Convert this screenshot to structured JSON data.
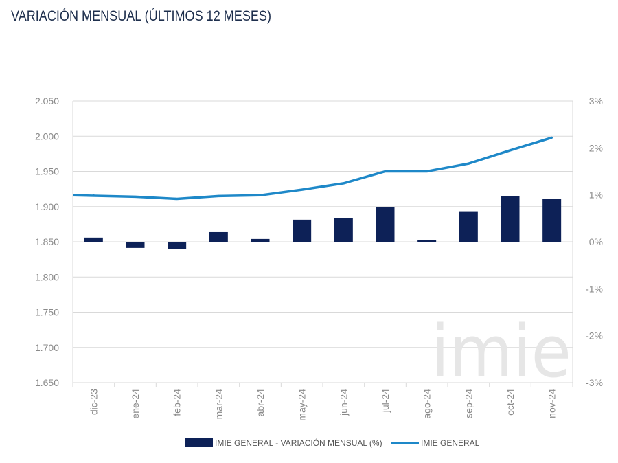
{
  "header": {
    "title": "VARIACIÓN MENSUAL (ÚLTIMOS 12 MESES)"
  },
  "watermark": {
    "text": "imie"
  },
  "colors": {
    "bar": "#0d2157",
    "line": "#1e88c8",
    "grid": "#d9d9d9",
    "watermark": "#e6e6e6"
  },
  "chart_data": {
    "type": "bar",
    "categories": [
      "dic-23",
      "ene-24",
      "feb-24",
      "mar-24",
      "abr-24",
      "may-24",
      "jun-24",
      "jul-24",
      "ago-24",
      "sep-24",
      "oct-24",
      "nov-24"
    ],
    "series": [
      {
        "name": "IMIE GENERAL - VARIACIÓN MENSUAL (%)",
        "type": "bar",
        "axis": "right",
        "values": [
          0.09,
          -0.13,
          -0.16,
          0.22,
          0.06,
          0.47,
          0.5,
          0.74,
          0.03,
          0.65,
          0.98,
          0.91
        ]
      },
      {
        "name": "IMIE GENERAL",
        "type": "line",
        "axis": "left",
        "values": [
          1916,
          1914,
          1911,
          1915,
          1916,
          1924,
          1933,
          1950,
          1950,
          1961,
          1980,
          1998
        ]
      }
    ],
    "left_axis": {
      "min": 1650,
      "max": 2050,
      "step": 50,
      "tick_labels": [
        "1.650",
        "1.700",
        "1.750",
        "1.800",
        "1.850",
        "1.900",
        "1.950",
        "2.000",
        "2.050"
      ]
    },
    "right_axis": {
      "min": -3,
      "max": 3,
      "step": 1,
      "tick_labels": [
        "-3%",
        "-2%",
        "-1%",
        "0%",
        "1%",
        "2%",
        "3%"
      ]
    },
    "grid": true,
    "legend_position": "bottom"
  }
}
